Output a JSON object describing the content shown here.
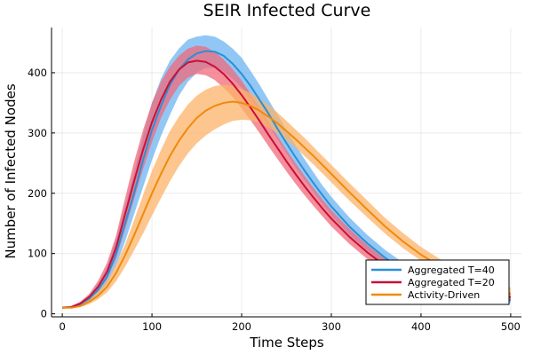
{
  "chart_data": {
    "type": "line",
    "title": "SEIR Infected Curve",
    "xlabel": "Time Steps",
    "ylabel": "Number of Infected Nodes",
    "xlim": [
      -12,
      512
    ],
    "ylim": [
      -5,
      475
    ],
    "xticks": [
      0,
      100,
      200,
      300,
      400,
      500
    ],
    "yticks": [
      0,
      100,
      200,
      300,
      400
    ],
    "grid": true,
    "legend_position": "bottom-right",
    "x": [
      0,
      10,
      20,
      30,
      40,
      50,
      60,
      70,
      80,
      90,
      100,
      110,
      120,
      130,
      140,
      150,
      160,
      170,
      180,
      190,
      200,
      210,
      220,
      230,
      240,
      250,
      260,
      270,
      280,
      290,
      300,
      320,
      340,
      360,
      380,
      400,
      420,
      440,
      460,
      480,
      500
    ],
    "series": [
      {
        "name": "Aggregated T=40",
        "color": "#2b8fd6",
        "band_color": "#6cb4f2",
        "mean": [
          10,
          11,
          16,
          25,
          40,
          62,
          100,
          150,
          200,
          255,
          305,
          345,
          380,
          405,
          422,
          432,
          436,
          435,
          428,
          415,
          398,
          378,
          355,
          332,
          307,
          283,
          260,
          238,
          217,
          197,
          178,
          145,
          117,
          93,
          73,
          57,
          44,
          34,
          27,
          24,
          23
        ],
        "lower": [
          9,
          10,
          14,
          21,
          32,
          50,
          80,
          120,
          165,
          210,
          255,
          295,
          330,
          362,
          385,
          400,
          408,
          408,
          402,
          390,
          375,
          355,
          335,
          312,
          290,
          266,
          243,
          222,
          202,
          182,
          163,
          132,
          105,
          82,
          63,
          48,
          37,
          28,
          22,
          19,
          18
        ],
        "upper": [
          12,
          13,
          19,
          30,
          50,
          78,
          125,
          180,
          235,
          295,
          350,
          390,
          420,
          440,
          455,
          460,
          462,
          460,
          452,
          440,
          425,
          403,
          380,
          355,
          330,
          305,
          280,
          257,
          235,
          213,
          194,
          160,
          131,
          106,
          85,
          68,
          54,
          43,
          35,
          31,
          29
        ]
      },
      {
        "name": "Aggregated T=20",
        "color": "#c8103a",
        "band_color": "#f06a7a",
        "mean": [
          10,
          11,
          17,
          28,
          45,
          70,
          110,
          165,
          220,
          272,
          318,
          355,
          385,
          405,
          417,
          420,
          418,
          410,
          398,
          382,
          363,
          342,
          320,
          297,
          275,
          253,
          232,
          212,
          193,
          175,
          158,
          128,
          102,
          80,
          62,
          48,
          38,
          32,
          30,
          29,
          28
        ],
        "lower": [
          9,
          10,
          15,
          24,
          37,
          58,
          92,
          140,
          190,
          240,
          285,
          325,
          355,
          378,
          392,
          398,
          396,
          388,
          375,
          360,
          341,
          321,
          300,
          278,
          257,
          236,
          216,
          197,
          179,
          162,
          145,
          116,
          91,
          70,
          53,
          40,
          31,
          25,
          23,
          22,
          21
        ],
        "upper": [
          12,
          13,
          20,
          33,
          55,
          85,
          130,
          192,
          252,
          305,
          350,
          385,
          410,
          428,
          440,
          445,
          443,
          435,
          422,
          406,
          387,
          365,
          342,
          318,
          295,
          272,
          250,
          229,
          209,
          190,
          172,
          141,
          114,
          91,
          72,
          57,
          46,
          39,
          36,
          35,
          34
        ]
      },
      {
        "name": "Activity-Driven",
        "color": "#ef8a0a",
        "band_color": "#fcb368",
        "mean": [
          10,
          10,
          13,
          20,
          30,
          45,
          68,
          97,
          130,
          165,
          200,
          232,
          262,
          287,
          308,
          325,
          337,
          345,
          350,
          352,
          350,
          345,
          337,
          327,
          316,
          303,
          290,
          276,
          262,
          247,
          232,
          202,
          173,
          145,
          120,
          98,
          80,
          65,
          52,
          41,
          33
        ],
        "lower": [
          9,
          9,
          11,
          16,
          24,
          36,
          54,
          78,
          105,
          133,
          163,
          192,
          220,
          245,
          266,
          283,
          296,
          306,
          314,
          320,
          322,
          321,
          317,
          309,
          299,
          288,
          276,
          262,
          248,
          233,
          218,
          188,
          160,
          133,
          109,
          88,
          70,
          56,
          44,
          34,
          26
        ],
        "upper": [
          11,
          12,
          16,
          24,
          37,
          55,
          82,
          115,
          155,
          197,
          237,
          272,
          303,
          327,
          347,
          362,
          372,
          378,
          380,
          378,
          373,
          366,
          357,
          346,
          334,
          320,
          306,
          292,
          277,
          262,
          247,
          217,
          188,
          159,
          134,
          111,
          92,
          76,
          63,
          52,
          44
        ]
      }
    ]
  }
}
